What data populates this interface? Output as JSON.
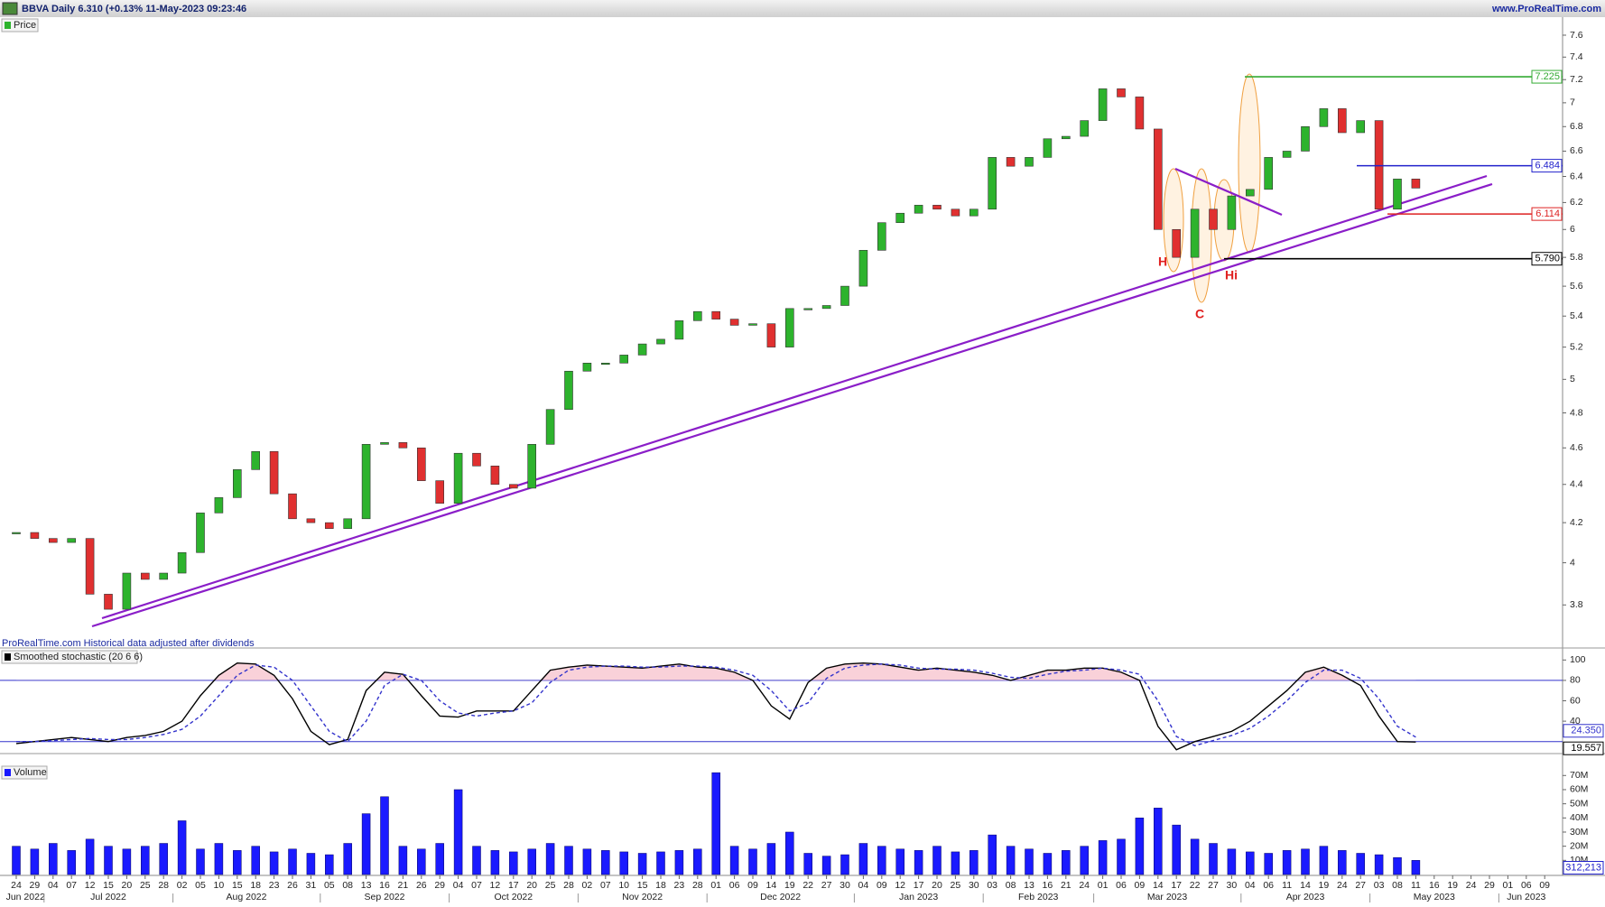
{
  "header": {
    "title": "BBVA Daily 6.310 (+0.13% 11-May-2023 09:23:46",
    "site": "www.ProRealTime.com",
    "note": "ProRealTime.com  Historical data adjusted after dividends"
  },
  "x_axis": {
    "ticks": [
      "24",
      "29",
      "04",
      "07",
      "12",
      "15",
      "20",
      "25",
      "28",
      "02",
      "05",
      "10",
      "15",
      "18",
      "23",
      "26",
      "31",
      "05",
      "08",
      "13",
      "16",
      "21",
      "26",
      "29",
      "04",
      "07",
      "12",
      "17",
      "20",
      "25",
      "28",
      "02",
      "07",
      "10",
      "15",
      "18",
      "23",
      "28",
      "01",
      "06",
      "09",
      "14",
      "19",
      "22",
      "27",
      "30",
      "04",
      "09",
      "12",
      "17",
      "20",
      "25",
      "30",
      "03",
      "08",
      "13",
      "16",
      "21",
      "24",
      "01",
      "06",
      "09",
      "14",
      "17",
      "22",
      "27",
      "30",
      "04",
      "06",
      "11",
      "14",
      "19",
      "24",
      "27",
      "03",
      "08",
      "11",
      "16",
      "19",
      "24",
      "29",
      "01",
      "06",
      "09"
    ],
    "months": [
      "Jun 2022",
      "Jul 2022",
      "Aug 2022",
      "Sep 2022",
      "Oct 2022",
      "Nov 2022",
      "Dec 2022",
      "Jan 2023",
      "Feb 2023",
      "Mar 2023",
      "Apr 2023",
      "May 2023",
      "Jun 2023"
    ]
  },
  "chart_data": [
    {
      "type": "candlestick",
      "title": "Price",
      "log": true,
      "ylim": [
        3.61,
        7.76
      ],
      "yticks": [
        3.8,
        4,
        4.2,
        4.4,
        4.6,
        4.8,
        5,
        5.2,
        5.4,
        5.6,
        5.8,
        6,
        6.2,
        6.4,
        6.6,
        6.8,
        7,
        7.2,
        7.4,
        7.6
      ],
      "up_color": "#2db32d",
      "down_color": "#e03030",
      "close": [
        4.15,
        4.12,
        4.1,
        4.12,
        3.85,
        3.78,
        3.95,
        3.92,
        3.95,
        4.05,
        4.25,
        4.33,
        4.48,
        4.58,
        4.35,
        4.22,
        4.2,
        4.17,
        4.22,
        4.62,
        4.63,
        4.6,
        4.42,
        4.3,
        4.57,
        4.5,
        4.4,
        4.38,
        4.62,
        4.82,
        5.05,
        5.1,
        5.1,
        5.15,
        5.22,
        5.25,
        5.37,
        5.43,
        5.38,
        5.34,
        5.35,
        5.2,
        5.45,
        5.45,
        5.47,
        5.6,
        5.85,
        6.05,
        6.12,
        6.18,
        6.15,
        6.1,
        6.15,
        6.55,
        6.48,
        6.55,
        6.7,
        6.72,
        6.85,
        7.12,
        7.05,
        6.78,
        6.0,
        5.8,
        6.15,
        6.0,
        6.25,
        6.3,
        6.55,
        6.6,
        6.8,
        6.95,
        6.75,
        6.85,
        6.15,
        6.38,
        6.31
      ],
      "levels": [
        {
          "value": 7.225,
          "label": "7.225",
          "color": "#33aa33"
        },
        {
          "value": 6.484,
          "label": "6.484",
          "color": "#2222cc"
        },
        {
          "value": 6.114,
          "label": "6.114",
          "color": "#dd2222"
        },
        {
          "value": 5.79,
          "label": "5.790",
          "color": "#000000"
        }
      ],
      "annotations": [
        "H",
        "C",
        "Hi"
      ]
    },
    {
      "type": "line",
      "title": "Smoothed stochastic (20 6 6)",
      "ylim": [
        10,
        110
      ],
      "yticks": [
        40,
        60,
        80,
        100
      ],
      "levels": [
        20,
        80
      ],
      "series": [
        {
          "color": "#000000",
          "values": [
            18,
            20,
            22,
            24,
            22,
            20,
            24,
            26,
            30,
            40,
            65,
            85,
            97,
            96,
            85,
            62,
            30,
            17,
            22,
            70,
            88,
            86,
            65,
            45,
            44,
            50,
            50,
            50,
            70,
            90,
            93,
            95,
            94,
            93,
            92,
            94,
            96,
            93,
            92,
            88,
            80,
            55,
            42,
            78,
            92,
            96,
            97,
            96,
            93,
            90,
            92,
            90,
            88,
            85,
            80,
            85,
            90,
            90,
            92,
            92,
            88,
            80,
            35,
            12,
            20,
            25,
            30,
            40,
            55,
            70,
            88,
            93,
            85,
            75,
            45,
            20,
            19.557
          ]
        },
        {
          "color": "#3333cc",
          "dashed": true,
          "values": [
            20,
            20,
            21,
            22,
            23,
            22,
            22,
            24,
            27,
            32,
            45,
            65,
            85,
            95,
            93,
            80,
            55,
            30,
            20,
            40,
            75,
            86,
            80,
            60,
            48,
            45,
            48,
            50,
            58,
            78,
            90,
            93,
            94,
            94,
            93,
            93,
            94,
            94,
            93,
            90,
            85,
            70,
            50,
            58,
            82,
            92,
            95,
            96,
            95,
            92,
            91,
            91,
            90,
            87,
            83,
            82,
            86,
            89,
            90,
            92,
            90,
            86,
            60,
            25,
            16,
            21,
            26,
            33,
            45,
            60,
            78,
            90,
            90,
            82,
            62,
            35,
            24.35
          ]
        }
      ],
      "markers": [
        {
          "value": 24.35,
          "label": "24.350",
          "color": "#3333cc"
        },
        {
          "value": 19.557,
          "label": "19.557",
          "color": "#000000"
        }
      ]
    },
    {
      "type": "bar",
      "title": "Volume",
      "ylim": [
        0,
        77200000
      ],
      "color": "#1a1aff",
      "yticks": [
        {
          "value": 10000000,
          "label": "10M"
        },
        {
          "value": 20000000,
          "label": "20M"
        },
        {
          "value": 30000000,
          "label": "30M"
        },
        {
          "value": 40000000,
          "label": "40M"
        },
        {
          "value": 50000000,
          "label": "50M"
        },
        {
          "value": 60000000,
          "label": "60M"
        },
        {
          "value": 70000000,
          "label": "70M"
        }
      ],
      "values": [
        20000000,
        18000000,
        22000000,
        17000000,
        25000000,
        20000000,
        18000000,
        20000000,
        22000000,
        38000000,
        18000000,
        22000000,
        17000000,
        20000000,
        16000000,
        18000000,
        15000000,
        14000000,
        22000000,
        43000000,
        55000000,
        20000000,
        18000000,
        22000000,
        60000000,
        20000000,
        17000000,
        16000000,
        18000000,
        22000000,
        20000000,
        18000000,
        17000000,
        16000000,
        15000000,
        16000000,
        17000000,
        18000000,
        72000000,
        20000000,
        18000000,
        22000000,
        30000000,
        15000000,
        13000000,
        14000000,
        22000000,
        20000000,
        18000000,
        17000000,
        20000000,
        16000000,
        17000000,
        28000000,
        20000000,
        18000000,
        15000000,
        17000000,
        20000000,
        24000000,
        25000000,
        40000000,
        47000000,
        35000000,
        25000000,
        22000000,
        18000000,
        16000000,
        15000000,
        17000000,
        18000000,
        20000000,
        17000000,
        15000000,
        14000000,
        12000000,
        10000000
      ],
      "markers": [
        {
          "value": 312213,
          "label": "312,213",
          "color": "#2222cc"
        }
      ]
    }
  ]
}
